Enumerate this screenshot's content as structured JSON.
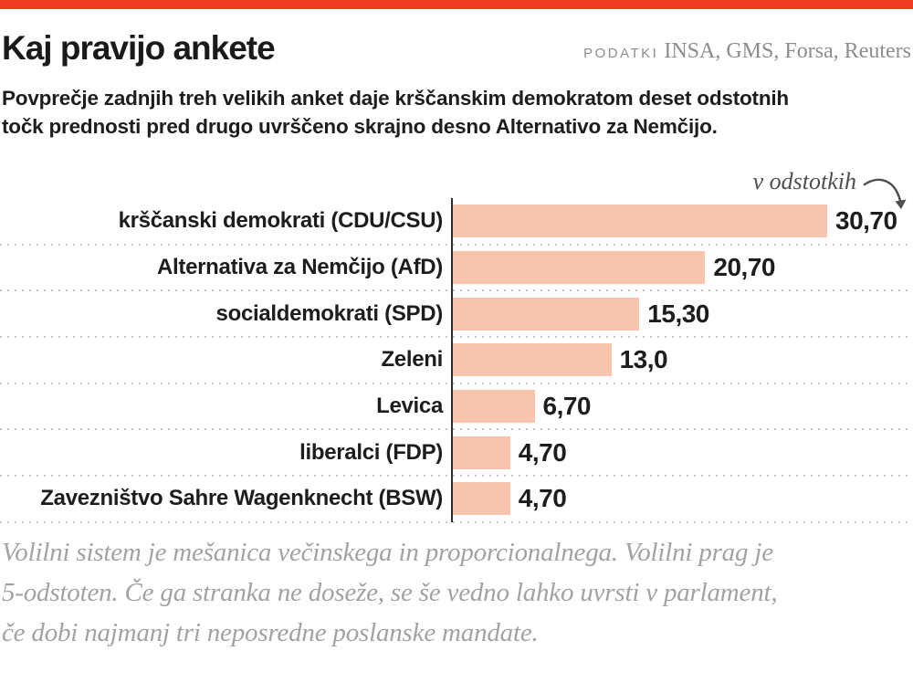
{
  "header": {
    "title": "Kaj pravijo ankete",
    "source_label": "PODATKI",
    "sources": "INSA, GMS, Forsa, Reuters"
  },
  "subtitle_lines": [
    "Povprečje zadnjih treh velikih anket daje krščanskim demokratom deset odstotnih",
    "točk prednosti pred drugo uvrščeno skrajno desno Alternativo za Nemčijo."
  ],
  "chart_data": {
    "type": "bar",
    "orientation": "horizontal",
    "title": "Kaj pravijo ankete",
    "unit_note": "v odstotkih",
    "categories": [
      "krščanski demokrati (CDU/CSU)",
      "Alternativa za Nemčijo (AfD)",
      "socialdemokrati (SPD)",
      "Zeleni",
      "Levica",
      "liberalci (FDP)",
      "Zavezništvo Sahre Wagenknecht (BSW)"
    ],
    "values": [
      30.7,
      20.7,
      15.3,
      13.0,
      6.7,
      4.7,
      4.7
    ],
    "value_labels": [
      "30,70",
      "20,70",
      "15,30",
      "13,0",
      "6,70",
      "4,70",
      "4,70"
    ],
    "xlim": [
      0,
      32
    ],
    "grid": "dotted-row-separators",
    "legend": "none"
  },
  "footnote_lines": [
    "Volilni sistem je mešanica večinskega in proporcionalnega. Volilni prag je",
    "5-odstoten. Če ga stranka ne doseže, se še vedno lahko uvrsti v parlament,",
    "če dobi najmanj tri neposredne poslanske mandate."
  ],
  "colors": {
    "accent_bar": "#ee3d22",
    "bar_fill": "#f9c4ae",
    "text_dark": "#1d1d1d",
    "source_gray": "#8d8d8d",
    "annotation_gray": "#4f4f4f",
    "footnote_gray": "#a2a2a2",
    "axis": "#2e2e2e",
    "dotted_line": "#c8c8c8"
  }
}
